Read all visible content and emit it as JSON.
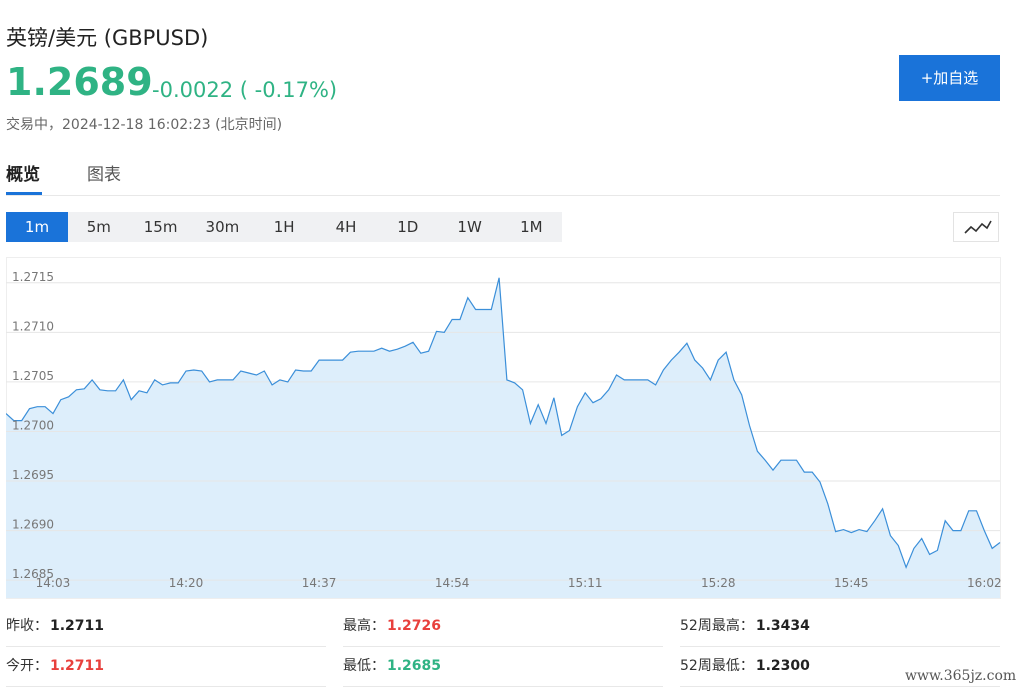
{
  "header": {
    "name": "英镑/美元",
    "code": "(GBPUSD)",
    "price": "1.2689",
    "change": "-0.0022",
    "change_pct": "( -0.17%)",
    "status": "交易中，2024-12-18 16:02:23",
    "timezone": "(北京时间)",
    "button": "+加自选"
  },
  "tabs": [
    "概览",
    "图表"
  ],
  "intervals": [
    "1m",
    "5m",
    "15m",
    "30m",
    "1H",
    "4H",
    "1D",
    "1W",
    "1M"
  ],
  "chart_data": {
    "type": "area",
    "color": "#3b8fd9",
    "fill_color": "#ddeefb",
    "grid": true,
    "ylim": [
      1.26832,
      1.27175
    ],
    "yticks": [
      1.2685,
      {
        "value": 1.269,
        "label": "1.2690"
      },
      1.2695,
      {
        "value": 1.27,
        "label": "1.2700"
      },
      1.2705,
      {
        "value": 1.271,
        "label": "1.2710"
      },
      1.2715
    ],
    "categories": [
      null,
      null,
      null,
      null,
      null,
      null,
      "14:03",
      null,
      null,
      null,
      null,
      null,
      null,
      null,
      null,
      null,
      null,
      null,
      null,
      null,
      null,
      null,
      null,
      "14:20",
      null,
      null,
      null,
      null,
      null,
      null,
      null,
      null,
      null,
      null,
      null,
      null,
      null,
      null,
      null,
      null,
      "14:37",
      null,
      null,
      null,
      null,
      null,
      null,
      null,
      null,
      null,
      null,
      null,
      null,
      null,
      null,
      null,
      null,
      "14:54",
      null,
      null,
      null,
      null,
      null,
      null,
      null,
      null,
      null,
      null,
      null,
      null,
      null,
      null,
      null,
      null,
      "15:11",
      null,
      null,
      null,
      null,
      null,
      null,
      null,
      null,
      null,
      null,
      null,
      null,
      null,
      null,
      null,
      null,
      "15:28",
      null,
      null,
      null,
      null,
      null,
      null,
      null,
      null,
      null,
      null,
      null,
      null,
      null,
      null,
      null,
      null,
      "15:45",
      null,
      null,
      null,
      null,
      null,
      null,
      null,
      null,
      null,
      null,
      null,
      null,
      null,
      null,
      null,
      null,
      "16:02",
      null,
      null
    ],
    "values": [
      1.27018,
      1.27011,
      1.27011,
      1.27023,
      1.27025,
      1.27025,
      1.27018,
      1.27032,
      1.27035,
      1.27042,
      1.27043,
      1.27052,
      1.27042,
      1.27041,
      1.27041,
      1.27052,
      1.27032,
      1.27041,
      1.27039,
      1.27052,
      1.27047,
      1.27049,
      1.27049,
      1.27061,
      1.27062,
      1.27061,
      1.2705,
      1.27052,
      1.27052,
      1.27052,
      1.27061,
      1.27059,
      1.27057,
      1.27061,
      1.27047,
      1.27052,
      1.2705,
      1.27062,
      1.27061,
      1.27061,
      1.27072,
      1.27072,
      1.27072,
      1.27072,
      1.2708,
      1.27081,
      1.27081,
      1.27081,
      1.27084,
      1.27081,
      1.27083,
      1.27086,
      1.2709,
      1.27079,
      1.27081,
      1.27101,
      1.271,
      1.27113,
      1.27113,
      1.27135,
      1.27123,
      1.27123,
      1.27123,
      1.27155,
      1.27052,
      1.27049,
      1.27042,
      1.27008,
      1.27027,
      1.27008,
      1.27034,
      1.26996,
      1.27001,
      1.27025,
      1.27039,
      1.27029,
      1.27033,
      1.27042,
      1.27057,
      1.27052,
      1.27052,
      1.27052,
      1.27052,
      1.27047,
      1.27062,
      1.27072,
      1.2708,
      1.27089,
      1.27072,
      1.27064,
      1.27052,
      1.27072,
      1.2708,
      1.27052,
      1.27037,
      1.27006,
      1.2698,
      1.26971,
      1.26961,
      1.26971,
      1.26971,
      1.26971,
      1.26959,
      1.26959,
      1.26949,
      1.26927,
      1.26899,
      1.26901,
      1.26898,
      1.26901,
      1.26899,
      1.2691,
      1.26922,
      1.26895,
      1.26885,
      1.26863,
      1.26882,
      1.26892,
      1.26876,
      1.2688,
      1.2691,
      1.269,
      1.269,
      1.2692,
      1.2692,
      1.269,
      1.26882,
      1.26888
    ]
  },
  "stats": [
    {
      "label": "昨收：",
      "value": "1.2711"
    },
    {
      "label": "最高：",
      "value": "1.2726"
    },
    {
      "label": "52周最高：",
      "value": "1.3434"
    },
    {
      "label": "今开：",
      "value": "1.2711"
    },
    {
      "label": "最低：",
      "value": "1.2685"
    },
    {
      "label": "52周最低：",
      "value": "1.2300"
    }
  ],
  "watermark": "www.365jz.com"
}
